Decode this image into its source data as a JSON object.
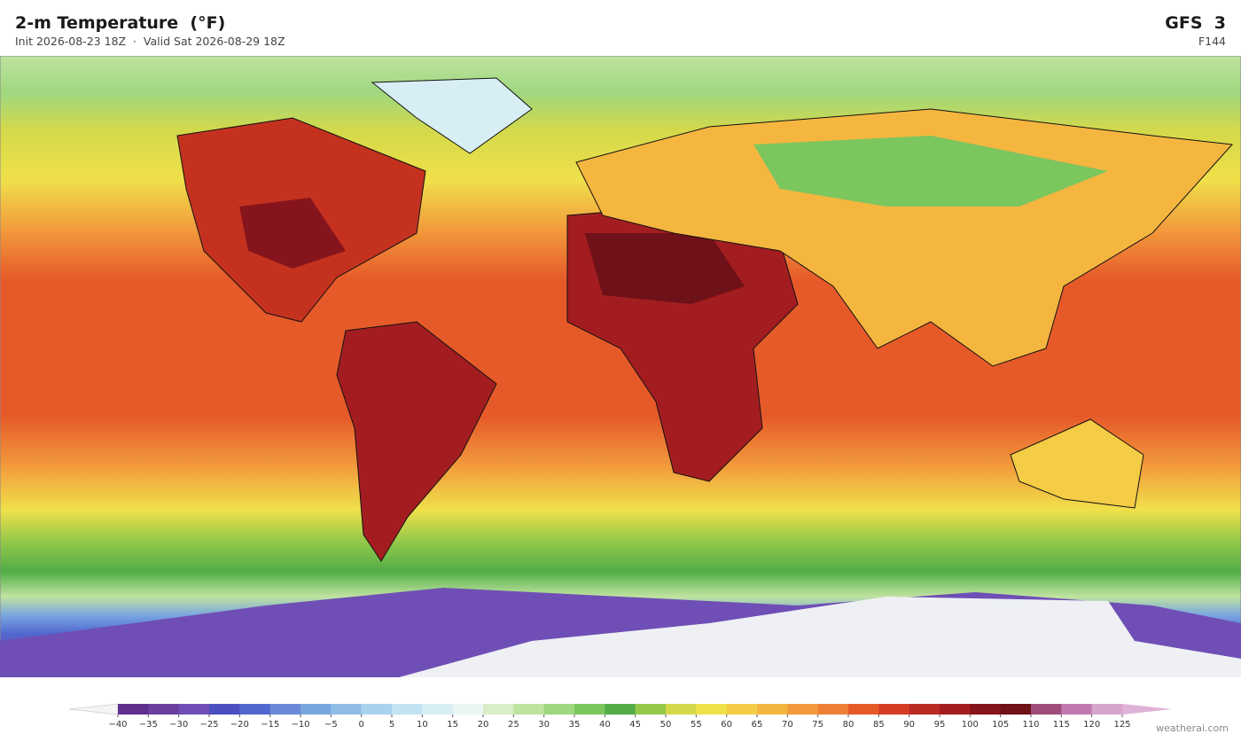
{
  "header": {
    "title": "2-m Temperature  (°F)",
    "subtitle": "Init 2026-08-23 18Z  ·  Valid Sat 2026-08-29 18Z",
    "model": "GFS  3",
    "forecast_hour": "F144"
  },
  "colorbar": {
    "labels": [
      "−40",
      "−35",
      "−30",
      "−25",
      "−20",
      "−15",
      "−10",
      "−5",
      "0",
      "5",
      "10",
      "15",
      "20",
      "25",
      "30",
      "35",
      "40",
      "45",
      "50",
      "55",
      "60",
      "65",
      "70",
      "75",
      "80",
      "85",
      "90",
      "95",
      "100",
      "105",
      "110",
      "115",
      "120",
      "125"
    ],
    "colors": [
      "#5e2f8c",
      "#6a3fa0",
      "#6f4fb5",
      "#4b4fc0",
      "#5068d0",
      "#6a8ad8",
      "#7aa6e0",
      "#8fbde6",
      "#a9d2ee",
      "#c2e3f2",
      "#d8eef5",
      "#eaf6f1",
      "#d8eec8",
      "#bfe3a0",
      "#9fd77f",
      "#7cc65e",
      "#52ad47",
      "#96c94a",
      "#d3d94a",
      "#f0e04a",
      "#f5cc45",
      "#f5b640",
      "#f29a3c",
      "#ee7f35",
      "#e65a2a",
      "#d63c25",
      "#bb2a22",
      "#a31d20",
      "#86141c",
      "#6e1118",
      "#a04c78",
      "#c07ab0",
      "#d8a6cc"
    ],
    "under_color": "#f4f4f4",
    "over_color": "#e0b2d8"
  },
  "watermark": "weatherai.com"
}
